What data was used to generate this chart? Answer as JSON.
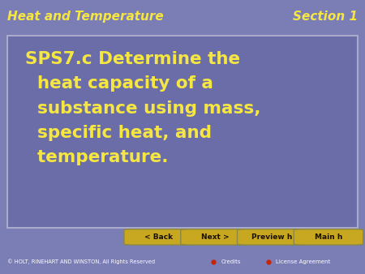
{
  "header_left": "Heat and Temperature",
  "header_right": "Section 1",
  "header_bg": "#7b7db5",
  "header_text_color": "#f5e642",
  "content_box_bg": "#6b6da8",
  "content_lines": [
    "SPS7.c Determine the",
    "  heat capacity of a",
    "  substance using mass,",
    "  specific heat, and",
    "  temperature."
  ],
  "content_text_color": "#f5e642",
  "footer_bg": "#000000",
  "footer_text": "© HOLT, RINEHART AND WINSTON, All Rights Reserved",
  "footer_text_color": "#ffffff",
  "footer_credits": "Credits",
  "footer_license": "License Agreement",
  "button_bg": "#c8a820",
  "button_border": "#888844",
  "button_text_color": "#1a1000",
  "nav_bg": "#cccade",
  "buttons": [
    "< Back",
    "Next >",
    "Preview h",
    "Main h"
  ]
}
